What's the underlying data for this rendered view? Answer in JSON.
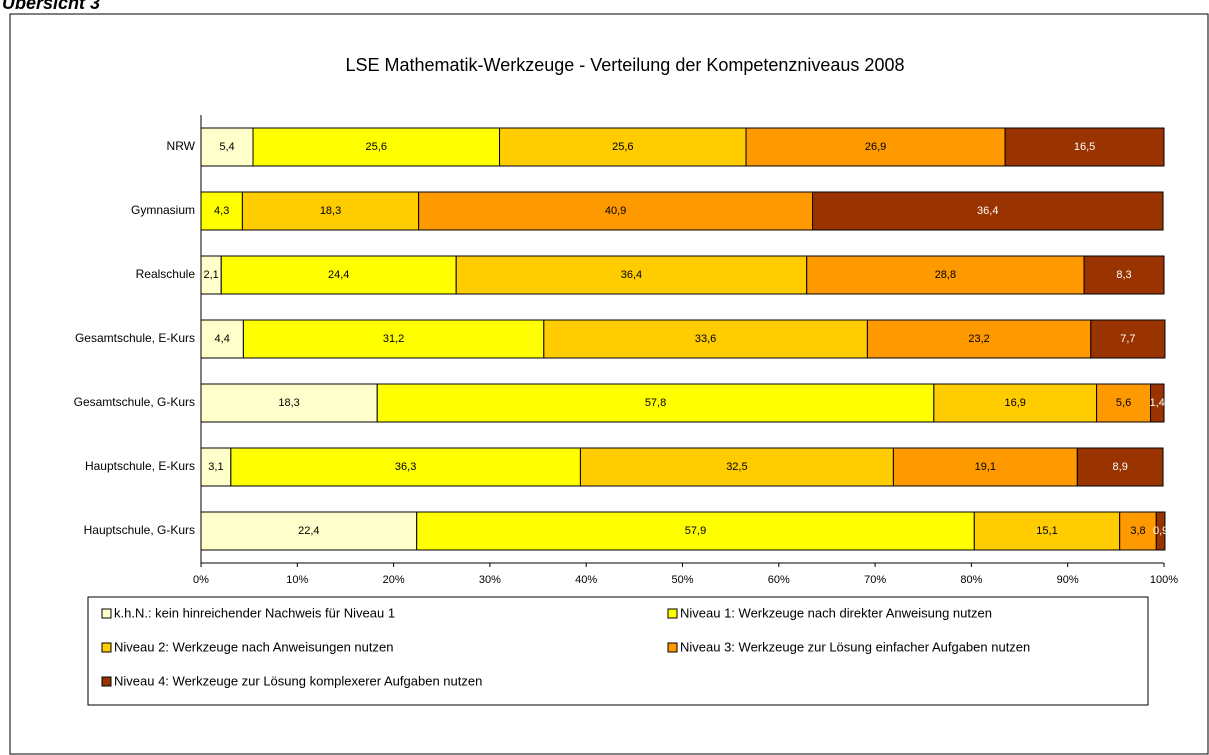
{
  "heading": "Übersicht 3",
  "chart_data": {
    "type": "stacked_bar_horizontal",
    "title": "LSE Mathematik-Werkzeuge - Verteilung der Kompetenzniveaus  2008",
    "categories": [
      "NRW",
      "Gymnasium",
      "Realschule",
      "Gesamtschule, E-Kurs",
      "Gesamtschule, G-Kurs",
      "Hauptschule, E-Kurs",
      "Hauptschule, G-Kurs"
    ],
    "series": [
      {
        "name": "k.h.N.: kein hinreichender Nachweis für Niveau 1",
        "color": "#ffffcc",
        "label_color": "#000000",
        "values": [
          5.4,
          0,
          2.1,
          4.4,
          18.3,
          3.1,
          22.4
        ],
        "value_labels": [
          "5,4",
          null,
          "2,1",
          "4,4",
          "18,3",
          "3,1",
          "22,4"
        ]
      },
      {
        "name": "Niveau 1: Werkzeuge nach direkter Anweisung nutzen",
        "color": "#ffff00",
        "label_color": "#000000",
        "values": [
          25.6,
          4.3,
          24.4,
          31.2,
          57.8,
          36.3,
          57.9
        ],
        "value_labels": [
          "25,6",
          "4,3",
          "24,4",
          "31,2",
          "57,8",
          "36,3",
          "57,9"
        ]
      },
      {
        "name": "Niveau 2: Werkzeuge nach Anweisungen nutzen",
        "color": "#ffcc00",
        "label_color": "#000000",
        "values": [
          25.6,
          18.3,
          36.4,
          33.6,
          16.9,
          32.5,
          15.1
        ],
        "value_labels": [
          "25,6",
          "18,3",
          "36,4",
          "33,6",
          "16,9",
          "32,5",
          "15,1"
        ]
      },
      {
        "name": "Niveau 3: Werkzeuge zur Lösung einfacher Aufgaben nutzen",
        "color": "#ff9900",
        "label_color": "#000000",
        "values": [
          26.9,
          40.9,
          28.8,
          23.2,
          5.6,
          19.1,
          3.8
        ],
        "value_labels": [
          "26,9",
          "40,9",
          "28,8",
          "23,2",
          "5,6",
          "19,1",
          "3,8"
        ]
      },
      {
        "name": "Niveau 4: Werkzeuge zur Lösung komplexerer Aufgaben nutzen",
        "color": "#993300",
        "label_color": "#ffffff",
        "values": [
          16.5,
          36.4,
          8.3,
          7.7,
          1.4,
          8.9,
          0.9
        ],
        "value_labels": [
          "16,5",
          "36,4",
          "8,3",
          "7,7",
          "1,4",
          "8,9",
          "0,9"
        ]
      }
    ],
    "xlim": [
      0,
      100
    ],
    "xticks": [
      {
        "value": 0,
        "label": "0%"
      },
      {
        "value": 10,
        "label": "10%"
      },
      {
        "value": 20,
        "label": "20%"
      },
      {
        "value": 30,
        "label": "30%"
      },
      {
        "value": 40,
        "label": "40%"
      },
      {
        "value": 50,
        "label": "50%"
      },
      {
        "value": 60,
        "label": "60%"
      },
      {
        "value": 70,
        "label": "70%"
      },
      {
        "value": 80,
        "label": "80%"
      },
      {
        "value": 90,
        "label": "90%"
      },
      {
        "value": 100,
        "label": "100%"
      }
    ],
    "grid": false
  }
}
